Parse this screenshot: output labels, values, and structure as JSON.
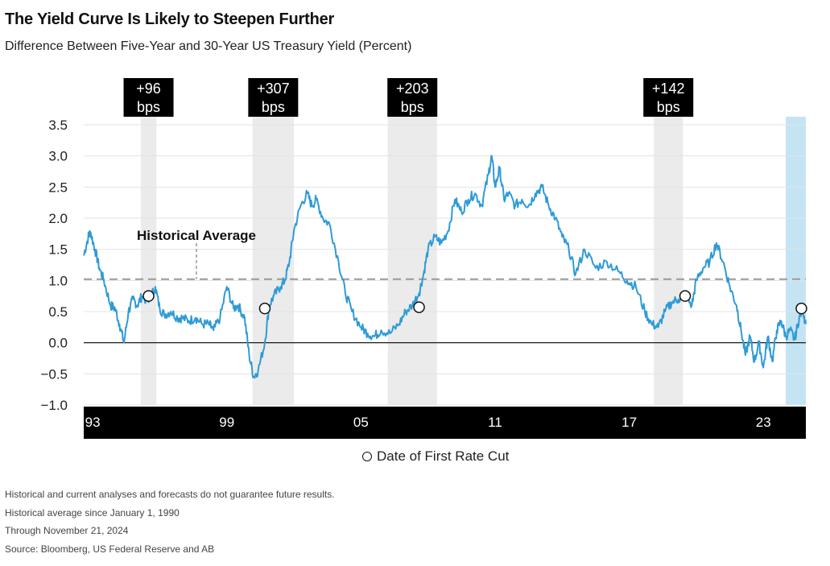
{
  "title": "The Yield Curve Is Likely to Steepen Further",
  "subtitle": "Difference Between Five-Year and 30-Year US Treasury Yield (Percent)",
  "legend_label": "Date of First Rate Cut",
  "notes": [
    "Historical and current analyses and forecasts do not guarantee future results.",
    "Historical average since January 1, 1990",
    "Through November 21, 2024",
    "Source: Bloomberg, US Federal Reserve and AB"
  ],
  "colors": {
    "line": "#2e9bd6",
    "shade": "#ebebeb",
    "current_shade": "#c5e4f3",
    "axis_bar": "#000000",
    "average": "#999999"
  },
  "chart_data": {
    "type": "line",
    "ylim": [
      -1.0,
      3.5
    ],
    "xlim": [
      1992.6,
      2024.9
    ],
    "yticks": [
      3.5,
      3.0,
      2.5,
      2.0,
      1.5,
      1.0,
      0.5,
      0.0,
      -0.5,
      -1.0
    ],
    "ytick_labels": [
      "3.5",
      "3.0",
      "2.5",
      "2.0",
      "1.5",
      "1.0",
      "0.5",
      "0.0",
      "−0.5",
      "−1.0"
    ],
    "xticks": [
      {
        "label": "93",
        "year": 1993.0
      },
      {
        "label": "99",
        "year": 1999.0
      },
      {
        "label": "05",
        "year": 2005.0
      },
      {
        "label": "11",
        "year": 2011.0
      },
      {
        "label": "17",
        "year": 2017.0
      },
      {
        "label": "23",
        "year": 2023.0
      }
    ],
    "historical_average": {
      "label": "Historical Average",
      "value": 1.02
    },
    "shaded_periods": [
      {
        "start": 1995.15,
        "end": 1995.85,
        "annotation": [
          "+96",
          "bps"
        ]
      },
      {
        "start": 2000.15,
        "end": 2002.0,
        "annotation": [
          "+307",
          "bps"
        ]
      },
      {
        "start": 2006.2,
        "end": 2008.4,
        "annotation": [
          "+203",
          "bps"
        ]
      },
      {
        "start": 2018.1,
        "end": 2019.4,
        "annotation": [
          "+142",
          "bps"
        ]
      }
    ],
    "current_period": {
      "start": 2024.0,
      "end": 2024.9
    },
    "first_rate_cuts": [
      {
        "year": 1995.5,
        "value": 0.75
      },
      {
        "year": 2000.7,
        "value": 0.55
      },
      {
        "year": 2007.6,
        "value": 0.57
      },
      {
        "year": 2019.5,
        "value": 0.75
      },
      {
        "year": 2024.7,
        "value": 0.55
      }
    ],
    "series": [
      {
        "x": [
          1992.6,
          1992.8,
          1992.9,
          1993.1,
          1993.3,
          1993.5,
          1993.8,
          1994.0,
          1994.2,
          1994.4,
          1994.6,
          1994.8,
          1995.0,
          1995.2,
          1995.5,
          1995.8,
          1996.0,
          1996.2,
          1996.5,
          1996.8,
          1997.0,
          1997.3,
          1997.6,
          1997.9,
          1998.2,
          1998.4,
          1998.7,
          1999.0,
          1999.3,
          1999.5,
          1999.8,
          2000.0,
          2000.2,
          2000.4,
          2000.7,
          2000.9,
          2001.1,
          2001.4,
          2001.6,
          2001.8,
          2002.0,
          2002.3,
          2002.6,
          2002.8,
          2003.0,
          2003.3,
          2003.6,
          2004.0,
          2004.3,
          2004.6,
          2005.0,
          2005.3,
          2005.6,
          2005.9,
          2006.3,
          2006.7,
          2007.0,
          2007.3,
          2007.6,
          2007.8,
          2008.0,
          2008.3,
          2008.6,
          2008.9,
          2009.2,
          2009.5,
          2009.8,
          2010.1,
          2010.4,
          2010.7,
          2010.85,
          2011.0,
          2011.2,
          2011.4,
          2011.6,
          2011.9,
          2012.2,
          2012.5,
          2012.8,
          2013.1,
          2013.4,
          2013.7,
          2014.0,
          2014.3,
          2014.6,
          2015.0,
          2015.5,
          2016.0,
          2016.5,
          2016.9,
          2017.3,
          2017.7,
          2018.0,
          2018.3,
          2018.6,
          2018.9,
          2019.2,
          2019.5,
          2019.8,
          2020.0,
          2020.3,
          2020.6,
          2020.9,
          2021.2,
          2021.5,
          2021.8,
          2022.0,
          2022.2,
          2022.4,
          2022.6,
          2022.8,
          2023.0,
          2023.2,
          2023.4,
          2023.6,
          2023.8,
          2024.0,
          2024.2,
          2024.4,
          2024.6,
          2024.75,
          2024.9
        ],
        "y": [
          1.4,
          1.7,
          1.78,
          1.5,
          1.2,
          1.0,
          0.6,
          0.55,
          0.3,
          0.0,
          0.5,
          0.7,
          0.6,
          0.75,
          0.65,
          0.9,
          0.55,
          0.45,
          0.5,
          0.4,
          0.4,
          0.35,
          0.4,
          0.3,
          0.3,
          0.2,
          0.4,
          0.9,
          0.55,
          0.6,
          0.4,
          -0.2,
          -0.55,
          -0.45,
          0.0,
          0.6,
          0.75,
          0.9,
          1.0,
          1.3,
          1.8,
          2.2,
          2.4,
          2.2,
          2.3,
          2.0,
          1.9,
          1.3,
          0.8,
          0.5,
          0.25,
          0.15,
          0.1,
          0.2,
          0.15,
          0.3,
          0.5,
          0.6,
          0.8,
          1.1,
          1.5,
          1.7,
          1.6,
          1.8,
          2.3,
          2.1,
          2.3,
          2.4,
          2.2,
          2.7,
          3.0,
          2.5,
          2.8,
          2.3,
          2.4,
          2.2,
          2.3,
          2.2,
          2.4,
          2.5,
          2.2,
          2.0,
          1.7,
          1.5,
          1.1,
          1.5,
          1.2,
          1.3,
          1.15,
          1.0,
          0.9,
          0.5,
          0.3,
          0.25,
          0.5,
          0.65,
          0.7,
          0.75,
          0.6,
          1.0,
          1.2,
          1.3,
          1.6,
          1.3,
          0.9,
          0.6,
          0.2,
          -0.2,
          0.1,
          -0.3,
          0.0,
          -0.4,
          0.1,
          -0.3,
          0.2,
          0.35,
          0.1,
          0.2,
          0.05,
          0.4,
          0.55,
          0.3
        ]
      }
    ]
  }
}
